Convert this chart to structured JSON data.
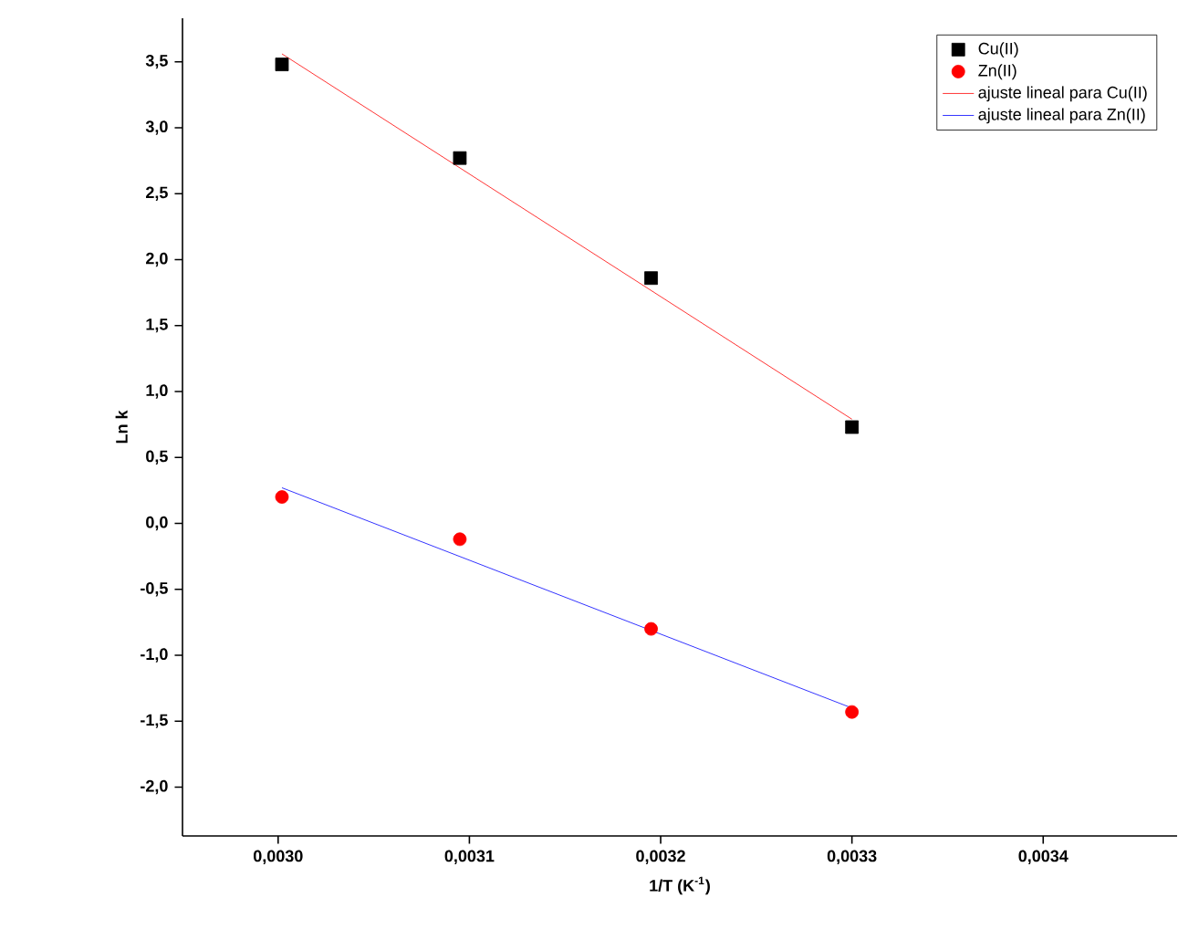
{
  "chart_data": {
    "type": "scatter",
    "xlabel": "1/T (K$^{-1}$)",
    "ylabel": "Ln k",
    "xlim": [
      0.00295,
      0.00347
    ],
    "ylim": [
      -2.37,
      3.83
    ],
    "xticks": [
      {
        "value": 0.003,
        "label": "0,0030"
      },
      {
        "value": 0.0031,
        "label": "0,0031"
      },
      {
        "value": 0.0032,
        "label": "0,0032"
      },
      {
        "value": 0.0033,
        "label": "0,0033"
      },
      {
        "value": 0.0034,
        "label": "0,0034"
      }
    ],
    "yticks": [
      {
        "value": -2.0,
        "label": "-2,0"
      },
      {
        "value": -1.5,
        "label": "-1,5"
      },
      {
        "value": -1.0,
        "label": "-1,0"
      },
      {
        "value": -0.5,
        "label": "-0,5"
      },
      {
        "value": 0.0,
        "label": "0,0"
      },
      {
        "value": 0.5,
        "label": "0,5"
      },
      {
        "value": 1.0,
        "label": "1,0"
      },
      {
        "value": 1.5,
        "label": "1,5"
      },
      {
        "value": 2.0,
        "label": "2,0"
      },
      {
        "value": 2.5,
        "label": "2,5"
      },
      {
        "value": 3.0,
        "label": "3,0"
      },
      {
        "value": 3.5,
        "label": "3,5"
      }
    ],
    "legend": "top right",
    "grid": false,
    "series": [
      {
        "name": "Cu(II)",
        "marker": "square",
        "color": "#000000",
        "x": [
          0.003002,
          0.003095,
          0.003195,
          0.0033
        ],
        "values": [
          3.48,
          2.77,
          1.86,
          0.73
        ]
      },
      {
        "name": "Zn(II)",
        "marker": "circle",
        "color": "#ff0000",
        "x": [
          0.003002,
          0.003095,
          0.003195,
          0.0033
        ],
        "values": [
          0.2,
          -0.12,
          -0.8,
          -1.43
        ]
      },
      {
        "name": "ajuste lineal para Cu(II)",
        "type": "line",
        "line_style": "solid",
        "color": "#ff0000",
        "x": [
          0.003002,
          0.0033
        ],
        "values": [
          3.56,
          0.79
        ]
      },
      {
        "name": "ajuste lineal para Zn(II)",
        "type": "line",
        "line_style": "solid",
        "color": "#0000ff",
        "x": [
          0.003002,
          0.0033
        ],
        "values": [
          0.27,
          -1.4
        ]
      }
    ]
  }
}
